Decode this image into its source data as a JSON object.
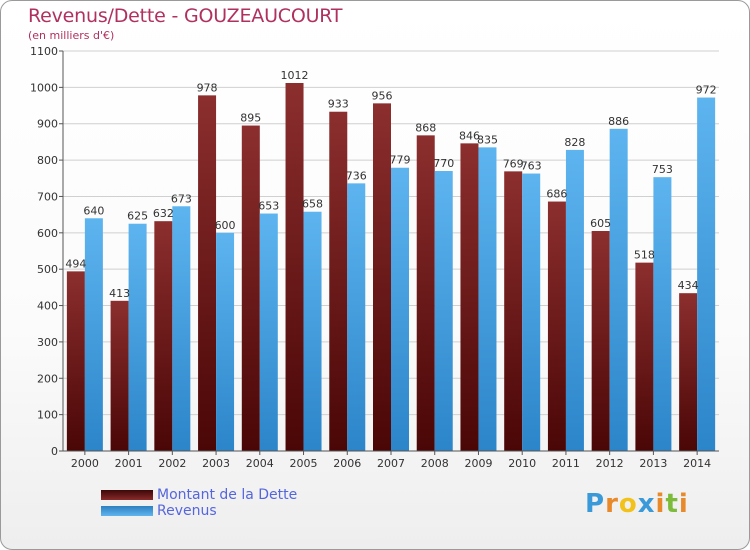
{
  "chart_data": {
    "type": "bar",
    "title": "Revenus/Dette - GOUZEAUCOURT",
    "subtitle": "(en milliers d'€)",
    "categories": [
      "2000",
      "2001",
      "2002",
      "2003",
      "2004",
      "2005",
      "2006",
      "2007",
      "2008",
      "2009",
      "2010",
      "2011",
      "2012",
      "2013",
      "2014"
    ],
    "series": [
      {
        "name": "Montant de la Dette",
        "color": "#7a1c1c",
        "values": [
          494,
          413,
          632,
          978,
          895,
          1012,
          933,
          956,
          868,
          846,
          769,
          686,
          605,
          518,
          434
        ]
      },
      {
        "name": "Revenus",
        "color": "#4da6e6",
        "values": [
          640,
          625,
          673,
          600,
          653,
          658,
          736,
          779,
          770,
          835,
          763,
          828,
          886,
          753,
          972
        ]
      }
    ],
    "ylim": [
      0,
      1100
    ],
    "yticks": [
      0,
      100,
      200,
      300,
      400,
      500,
      600,
      700,
      800,
      900,
      1000,
      1100
    ],
    "grid": true,
    "legend_position": "bottom-left"
  },
  "logo": {
    "letters": [
      "P",
      "r",
      "o",
      "x",
      "i",
      "t",
      "i"
    ],
    "colors": [
      "#3a9ad9",
      "#e8892a",
      "#f2c21b",
      "#3a9ad9",
      "#e8892a",
      "#7dbb3a",
      "#e8892a"
    ]
  }
}
